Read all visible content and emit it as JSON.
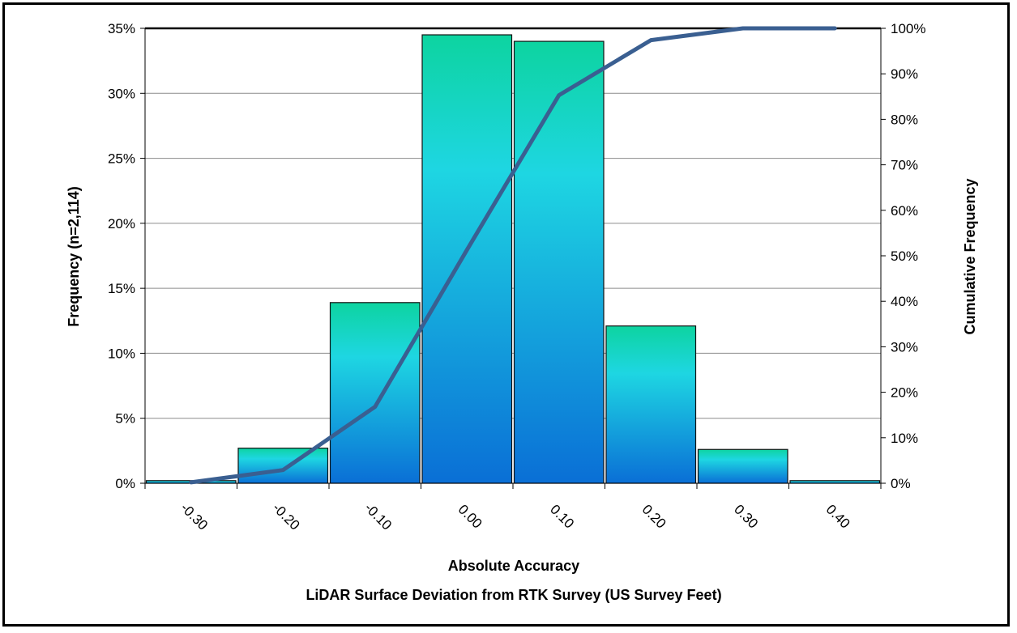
{
  "chart_data": {
    "type": "bar",
    "categories": [
      "-0.30",
      "-0.20",
      "-0.10",
      "0.00",
      "0.10",
      "0.20",
      "0.30",
      "0.40"
    ],
    "series": [
      {
        "values": [
          0.2,
          2.7,
          13.9,
          34.5,
          34.0,
          12.1,
          2.6,
          0.2
        ]
      },
      {
        "values": [
          0.2,
          2.9,
          16.8,
          51.3,
          85.3,
          97.4,
          100.0,
          100.0
        ]
      }
    ],
    "xlabel": "Absolute Accuracy",
    "xlabel2": "LiDAR Surface Deviation from RTK Survey (US Survey Feet)",
    "ylabel": "Frequency (n=2,114)",
    "ylabel_right": "Cumulative Frequency",
    "ylim": [
      0,
      35
    ],
    "ylim_right": [
      0,
      100
    ],
    "yticks": [
      "0%",
      "5%",
      "10%",
      "15%",
      "20%",
      "25%",
      "30%",
      "35%"
    ],
    "yticks_right": [
      "0%",
      "10%",
      "20%",
      "30%",
      "40%",
      "50%",
      "60%",
      "70%",
      "80%",
      "90%",
      "100%"
    ],
    "grid": true,
    "legend": "none",
    "colors": {
      "bar_top": "#0dd4a0",
      "bar_mid": "#1ed6e2",
      "bar_bottom": "#0a6fd6",
      "bar_edge": "#111111",
      "cumulative_line": "#3a5f91"
    }
  }
}
